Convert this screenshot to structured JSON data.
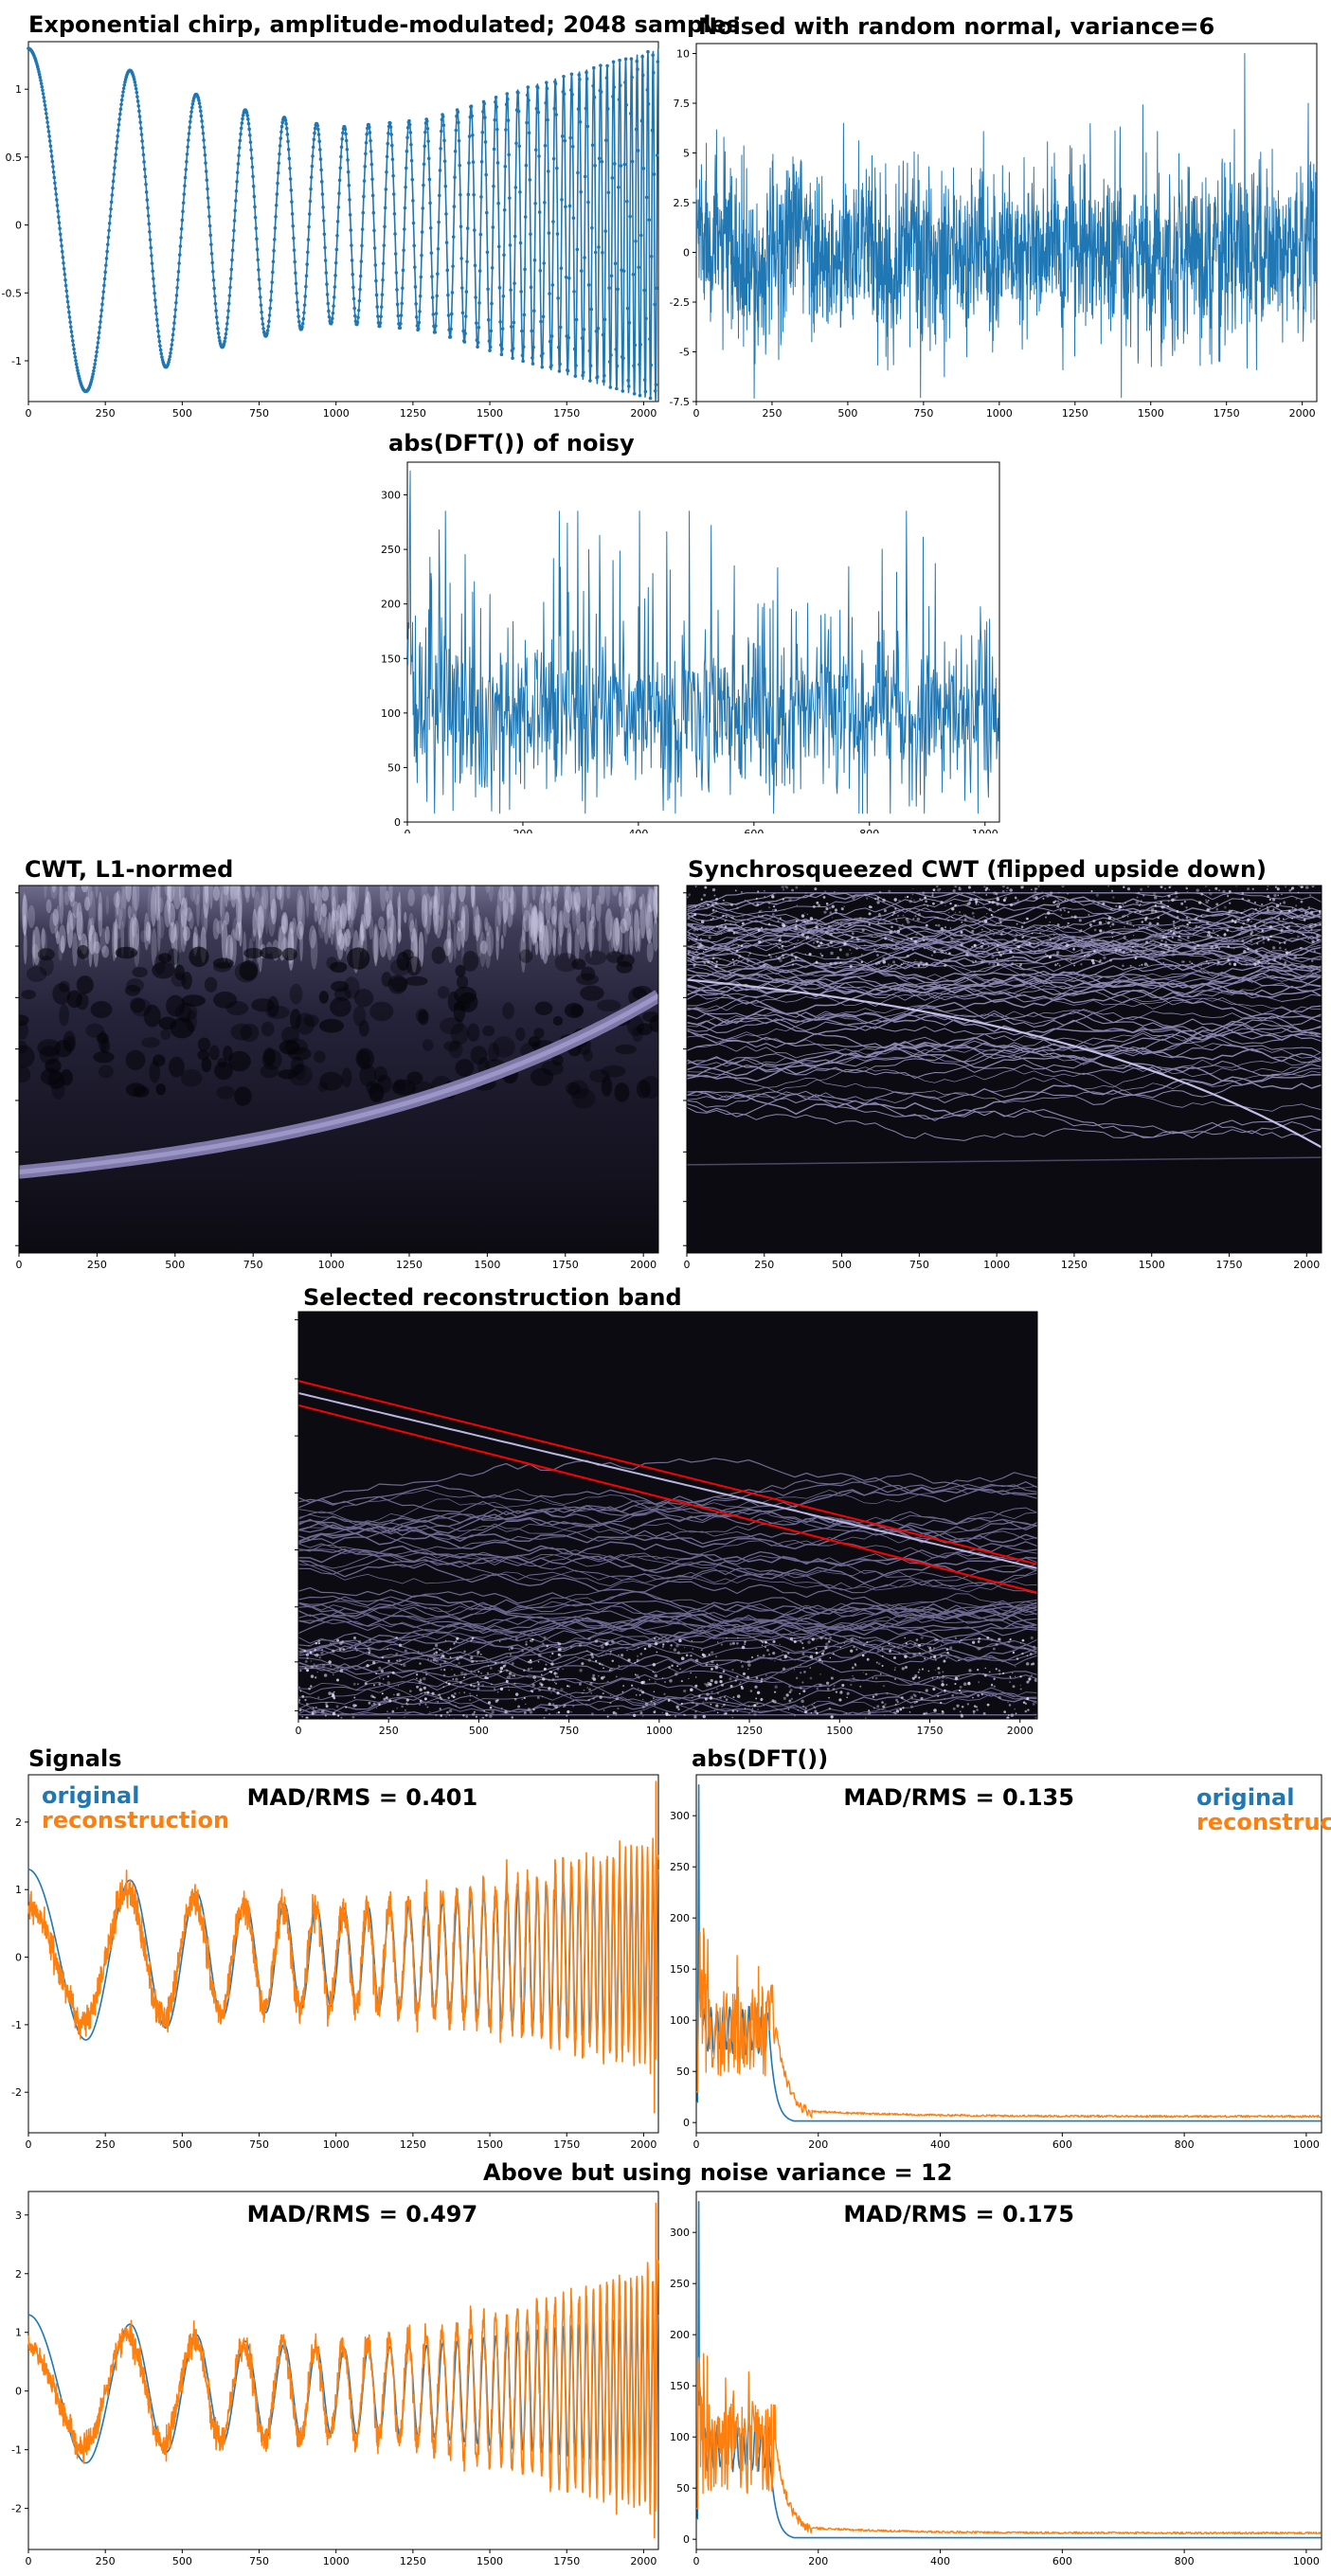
{
  "colors": {
    "original": "#1f77b4",
    "reconstruction": "#ff7f0e",
    "band_line": "#ff0000",
    "heatmap_bg": "#0c0b12"
  },
  "sections": {
    "variance12_heading": "Above but using noise variance = 12"
  },
  "chart_data": [
    {
      "id": "chirp",
      "type": "line",
      "title": "Exponential chirp, amplitude-modulated; 2048 samples",
      "xlim": [
        0,
        2048
      ],
      "ylim": [
        -1.3,
        1.35
      ],
      "xticks": [
        0,
        250,
        500,
        750,
        1000,
        1250,
        1500,
        1750,
        2000
      ],
      "yticks": [
        -1.0,
        -0.5,
        0.0,
        0.5,
        1.0
      ],
      "series": [
        {
          "n": 2048,
          "amplitude_envelope": [
            [
              0,
              1.3
            ],
            [
              250,
              1.2
            ],
            [
              420,
              1.07
            ],
            [
              560,
              0.95
            ],
            [
              700,
              0.85
            ],
            [
              1000,
              0.72
            ],
            [
              1300,
              0.78
            ],
            [
              1600,
              1.0
            ],
            [
              2047,
              1.3
            ]
          ],
          "cycles": 37
        }
      ]
    },
    {
      "id": "noisy",
      "type": "line",
      "title": "Noised with random normal, variance=6",
      "xlim": [
        0,
        2048
      ],
      "ylim": [
        -7.5,
        10.5
      ],
      "xticks": [
        0,
        250,
        500,
        750,
        1000,
        1250,
        1500,
        1750,
        2000
      ],
      "yticks": [
        -7.5,
        -5.0,
        -2.5,
        0.0,
        2.5,
        5.0,
        7.5,
        10.0
      ],
      "series": [
        {
          "n": 2048,
          "variance": 6
        }
      ]
    },
    {
      "id": "dft_noisy",
      "type": "line",
      "title": "abs(DFT()) of noisy",
      "xlim": [
        0,
        1025
      ],
      "ylim": [
        0,
        330
      ],
      "xticks": [
        0,
        200,
        400,
        600,
        800,
        1000
      ],
      "yticks": [
        0,
        50,
        100,
        150,
        200,
        250,
        300
      ],
      "series": [
        {
          "n": 1025,
          "peak": [
            [
              5,
              322
            ]
          ],
          "mean": 100
        }
      ]
    },
    {
      "id": "cwt",
      "type": "heatmap",
      "title": "CWT, L1-normed",
      "xlim": [
        0,
        2048
      ],
      "xticks": [
        0,
        250,
        500,
        750,
        1000,
        1250,
        1500,
        1750,
        2000
      ]
    },
    {
      "id": "ssq",
      "type": "heatmap",
      "title": "Synchrosqueezed CWT (flipped upside down)",
      "xlim": [
        0,
        2048
      ],
      "xticks": [
        0,
        250,
        500,
        750,
        1000,
        1250,
        1500,
        1750,
        2000
      ]
    },
    {
      "id": "band",
      "type": "heatmap",
      "title": "Selected reconstruction band",
      "xlim": [
        0,
        2048
      ],
      "xticks": [
        0,
        250,
        500,
        750,
        1000,
        1250,
        1500,
        1750,
        2000
      ],
      "band_lines": [
        [
          [
            0,
            0.17
          ],
          [
            2048,
            0.62
          ]
        ],
        [
          [
            0,
            0.23
          ],
          [
            2048,
            0.69
          ]
        ]
      ]
    },
    {
      "id": "signals6",
      "type": "line",
      "title": "Signals",
      "annotation": "MAD/RMS = 0.401",
      "legend": [
        "original",
        "reconstruction"
      ],
      "xlim": [
        0,
        2048
      ],
      "ylim": [
        -2.6,
        2.7
      ],
      "xticks": [
        0,
        250,
        500,
        750,
        1000,
        1250,
        1500,
        1750,
        2000
      ],
      "yticks": [
        -2,
        -1,
        0,
        1,
        2
      ]
    },
    {
      "id": "dft6",
      "type": "line",
      "title": "abs(DFT())",
      "annotation": "MAD/RMS = 0.135",
      "legend": [
        "original",
        "reconstruction"
      ],
      "xlim": [
        0,
        1025
      ],
      "ylim": [
        -10,
        340
      ],
      "xticks": [
        0,
        200,
        400,
        600,
        800,
        1000
      ],
      "yticks": [
        0,
        50,
        100,
        150,
        200,
        250,
        300
      ]
    },
    {
      "id": "signals12",
      "type": "line",
      "annotation": "MAD/RMS = 0.497",
      "xlim": [
        0,
        2048
      ],
      "ylim": [
        -2.7,
        3.4
      ],
      "xticks": [
        0,
        250,
        500,
        750,
        1000,
        1250,
        1500,
        1750,
        2000
      ],
      "yticks": [
        -2,
        -1,
        0,
        1,
        2,
        3
      ]
    },
    {
      "id": "dft12",
      "type": "line",
      "annotation": "MAD/RMS = 0.175",
      "xlim": [
        0,
        1025
      ],
      "ylim": [
        -10,
        340
      ],
      "xticks": [
        0,
        200,
        400,
        600,
        800,
        1000
      ],
      "yticks": [
        0,
        50,
        100,
        150,
        200,
        250,
        300
      ]
    }
  ]
}
